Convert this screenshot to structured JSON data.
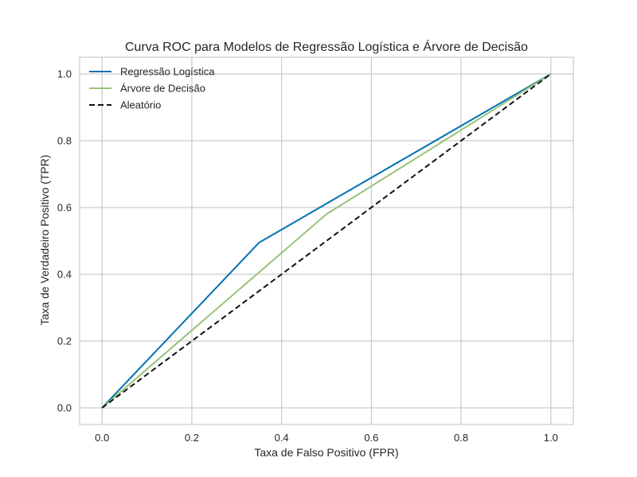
{
  "chart_data": {
    "type": "line",
    "title": "Curva ROC para Modelos de Regressão Logística e Árvore de Decisão",
    "xlabel": "Taxa de Falso Positivo (FPR)",
    "ylabel": "Taxa de Verdadeiro Positivo (TPR)",
    "xlim": [
      -0.05,
      1.05
    ],
    "ylim": [
      -0.05,
      1.05
    ],
    "xticks": [
      0.0,
      0.2,
      0.4,
      0.6,
      0.8,
      1.0
    ],
    "yticks": [
      0.0,
      0.2,
      0.4,
      0.6,
      0.8,
      1.0
    ],
    "grid": true,
    "legend_position": "top-left",
    "series": [
      {
        "name": "Regressão Logística",
        "color": "#0072B2",
        "style": "solid",
        "x": [
          0.0,
          0.35,
          1.0
        ],
        "y": [
          0.0,
          0.495,
          1.0
        ]
      },
      {
        "name": "Árvore de Decisão",
        "color": "#99C27A",
        "style": "solid",
        "x": [
          0.0,
          0.5,
          1.0
        ],
        "y": [
          0.0,
          0.58,
          1.0
        ]
      },
      {
        "name": "Aleatório",
        "color": "#111111",
        "style": "dashed",
        "x": [
          0.0,
          1.0
        ],
        "y": [
          0.0,
          1.0
        ]
      }
    ]
  }
}
